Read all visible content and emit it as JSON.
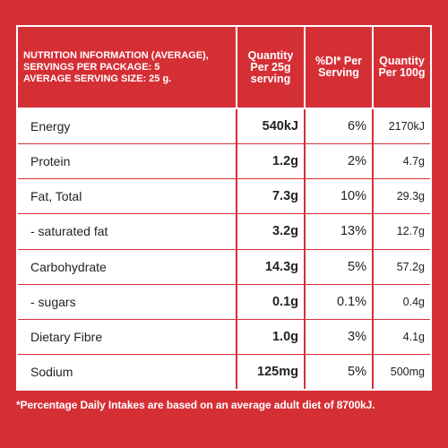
{
  "header": {
    "info_line1": "NUTRITION INFORMATION (AVERAGE),",
    "info_line2": "SERVINGS PER PACKAGE: 5",
    "info_line3": "AVERAGE SERVING SIZE: 25 g.",
    "col_serving_line1": "Quantity",
    "col_serving_line2": "Per 25g",
    "col_serving_line3": "serving",
    "col_di_line1": "%DI* Per",
    "col_di_line2": "Serving",
    "col_100g_line1": "Quantity",
    "col_100g_line2": "Per 100g"
  },
  "rows": [
    {
      "label": "Energy",
      "serving": "540kJ",
      "di": "6%",
      "per100": "2170kJ"
    },
    {
      "label": "Protein",
      "serving": "1.2g",
      "di": "2%",
      "per100": "4.7g"
    },
    {
      "label": "Fat, Total",
      "serving": "7.3g",
      "di": "10%",
      "per100": "29.3g"
    },
    {
      "label": "- saturated fat",
      "serving": "3.2g",
      "di": "13%",
      "per100": "12.7g"
    },
    {
      "label": "Carbohydrate",
      "serving": "14.3g",
      "di": "5%",
      "per100": "57.2g"
    },
    {
      "label": "- sugars",
      "serving": "0.1g",
      "di": "0.1%",
      "per100": "0.4g"
    },
    {
      "label": "Dietary Fibre",
      "serving": "1.0g",
      "di": "3%",
      "per100": "4.1g"
    },
    {
      "label": "Sodium",
      "serving": "125mg",
      "di": "5%",
      "per100": "500mg"
    }
  ],
  "footnote": "*Percentage Daily Intakes are based on an average adult diet of 8700kJ.",
  "colors": {
    "background": "#d52f36",
    "cell": "#ffffff",
    "text": "#222222"
  }
}
